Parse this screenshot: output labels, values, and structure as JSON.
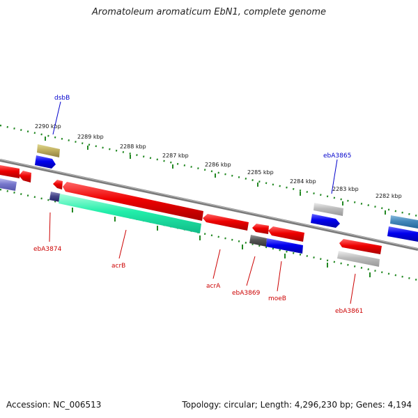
{
  "title": "Aromatoleum aromaticum EbN1, complete genome",
  "footer": {
    "accession": "Accession: NC_006513",
    "summary": "Topology: circular; Length: 4,296,230 bp; Genes: 4,194"
  },
  "ruler": [
    {
      "label": "2290 kbp"
    },
    {
      "label": "2289 kbp"
    },
    {
      "label": "2288 kbp"
    },
    {
      "label": "2287 kbp"
    },
    {
      "label": "2286 kbp"
    },
    {
      "label": "2285 kbp"
    },
    {
      "label": "2284 kbp"
    },
    {
      "label": "2283 kbp"
    },
    {
      "label": "2282 kbp"
    }
  ],
  "gene_labels": [
    {
      "name": "dsbB",
      "color": "#0000cc"
    },
    {
      "name": "ebA3865",
      "color": "#0000cc"
    },
    {
      "name": "ebA3874",
      "color": "#cc0000"
    },
    {
      "name": "acrB",
      "color": "#cc0000"
    },
    {
      "name": "acrA",
      "color": "#cc0000"
    },
    {
      "name": "ebA3869",
      "color": "#cc0000"
    },
    {
      "name": "moeB",
      "color": "#cc0000"
    },
    {
      "name": "ebA3861",
      "color": "#cc0000"
    }
  ]
}
